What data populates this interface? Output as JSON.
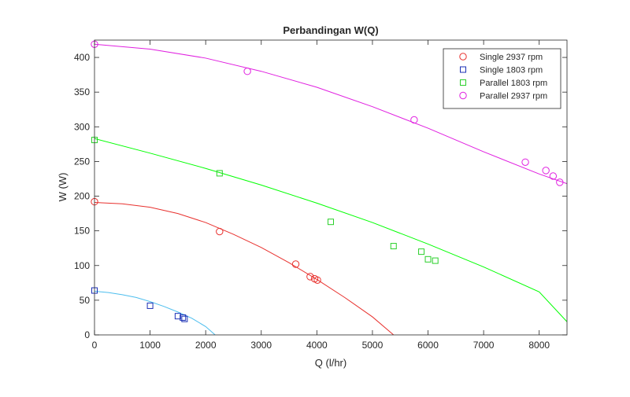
{
  "chart_data": {
    "type": "scatter",
    "title": "Perbandingan W(Q)",
    "xlabel": "Q (l/hr)",
    "ylabel": "W (W)",
    "xlim": [
      0,
      8500
    ],
    "ylim": [
      0,
      425
    ],
    "xticks": [
      0,
      1000,
      2000,
      3000,
      4000,
      5000,
      6000,
      7000,
      8000
    ],
    "yticks": [
      0,
      50,
      100,
      150,
      200,
      250,
      300,
      350,
      400
    ],
    "grid": false,
    "legend_position": "top-right",
    "series": [
      {
        "name": "Single 2937 rpm",
        "marker": "circle",
        "color": "#e8312e",
        "fit_color": "#e8312e",
        "points": [
          [
            0,
            192
          ],
          [
            2250,
            149
          ],
          [
            3620,
            102
          ],
          [
            3880,
            84
          ],
          [
            3960,
            81
          ],
          [
            4010,
            79
          ]
        ],
        "fit": [
          [
            0,
            191
          ],
          [
            500,
            189
          ],
          [
            1000,
            184
          ],
          [
            1500,
            175
          ],
          [
            2000,
            162
          ],
          [
            2500,
            145
          ],
          [
            3000,
            126
          ],
          [
            3500,
            104
          ],
          [
            4000,
            80
          ],
          [
            4500,
            54
          ],
          [
            5000,
            26
          ],
          [
            5380,
            0
          ]
        ]
      },
      {
        "name": "Single 1803 rpm",
        "marker": "square",
        "color": "#1a2fb5",
        "fit_color": "#4dbeee",
        "points": [
          [
            0,
            64
          ],
          [
            1000,
            42
          ],
          [
            1500,
            27
          ],
          [
            1590,
            25
          ],
          [
            1620,
            23
          ]
        ],
        "fit": [
          [
            0,
            63
          ],
          [
            250,
            61
          ],
          [
            500,
            58
          ],
          [
            750,
            54
          ],
          [
            1000,
            48
          ],
          [
            1250,
            41
          ],
          [
            1500,
            33
          ],
          [
            1750,
            24
          ],
          [
            2000,
            12
          ],
          [
            2170,
            0
          ]
        ]
      },
      {
        "name": "Parallel 1803 rpm",
        "marker": "square",
        "color": "#2ad02a",
        "fit_color": "#00ff00",
        "points": [
          [
            0,
            281
          ],
          [
            2250,
            233
          ],
          [
            4250,
            163
          ],
          [
            5380,
            128
          ],
          [
            5880,
            120
          ],
          [
            6000,
            109
          ],
          [
            6130,
            107
          ]
        ],
        "fit": [
          [
            0,
            283
          ],
          [
            1000,
            262
          ],
          [
            2000,
            240
          ],
          [
            3000,
            216
          ],
          [
            4000,
            190
          ],
          [
            5000,
            162
          ],
          [
            6000,
            131
          ],
          [
            7000,
            98
          ],
          [
            8000,
            62
          ],
          [
            8500,
            19
          ]
        ]
      },
      {
        "name": "Parallel 2937 rpm",
        "marker": "circle",
        "color": "#e01fe0",
        "fit_color": "#e01fe0",
        "points": [
          [
            0,
            419
          ],
          [
            2750,
            380
          ],
          [
            5750,
            310
          ],
          [
            7750,
            249
          ],
          [
            8120,
            237
          ],
          [
            8250,
            229
          ],
          [
            8370,
            220
          ]
        ],
        "fit": [
          [
            0,
            419
          ],
          [
            1000,
            412
          ],
          [
            2000,
            399
          ],
          [
            3000,
            380
          ],
          [
            4000,
            357
          ],
          [
            5000,
            329
          ],
          [
            6000,
            298
          ],
          [
            7000,
            264
          ],
          [
            8000,
            232
          ],
          [
            8500,
            218
          ]
        ]
      }
    ]
  }
}
